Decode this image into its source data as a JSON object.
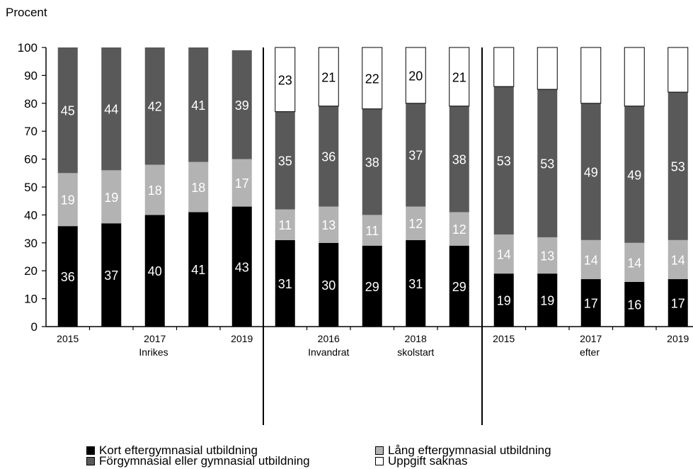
{
  "chart_data": {
    "type": "bar",
    "stacked": true,
    "ylabel": "Procent",
    "ylim": [
      0,
      100
    ],
    "yticks": [
      0,
      10,
      20,
      30,
      40,
      50,
      60,
      70,
      80,
      90,
      100
    ],
    "colors": {
      "kort": "#000000",
      "lang": "#b3b3b3",
      "forgym": "#595959",
      "saknas": "#ffffff",
      "label_on_dark": "#ffffff",
      "label_on_light": "#000000"
    },
    "series": [
      {
        "key": "kort",
        "name": "Kort eftergymnasial utbildning"
      },
      {
        "key": "lang",
        "name": "Lång eftergymnasial utbildning"
      },
      {
        "key": "forgym",
        "name": "Förgymnasial eller gymnasial utbildning"
      },
      {
        "key": "saknas",
        "name": "Uppgift saknas"
      }
    ],
    "groups": [
      {
        "label_lines": [
          "Inrikes"
        ],
        "categories": [
          "2015",
          "2016",
          "2017",
          "2018",
          "2019"
        ],
        "tick_labels": [
          "2015",
          "",
          "2017",
          "",
          "2019"
        ],
        "values": {
          "kort": [
            36,
            37,
            40,
            41,
            43
          ],
          "lang": [
            19,
            19,
            18,
            18,
            17
          ],
          "forgym": [
            45,
            44,
            42,
            41,
            39
          ],
          "saknas": [
            0,
            0,
            0,
            0,
            0
          ]
        },
        "data_labels": {
          "kort": [
            "36",
            "37",
            "40",
            "41",
            "43"
          ],
          "lang": [
            "19",
            "19",
            "18",
            "18",
            "17"
          ],
          "forgym": [
            "45",
            "44",
            "42",
            "41",
            "39"
          ],
          "saknas": [
            "",
            "",
            "",
            "",
            ""
          ]
        }
      },
      {
        "label_lines": [
          "Invandrat",
          "skolstart"
        ],
        "categories": [
          "2015",
          "2016",
          "2017",
          "2018",
          "2019"
        ],
        "tick_labels": [
          "",
          "2016",
          "",
          "2018",
          ""
        ],
        "values": {
          "kort": [
            31,
            30,
            29,
            31,
            29
          ],
          "lang": [
            11,
            13,
            11,
            12,
            12
          ],
          "forgym": [
            35,
            36,
            38,
            37,
            38
          ],
          "saknas": [
            23,
            21,
            22,
            20,
            21
          ]
        },
        "data_labels": {
          "kort": [
            "31",
            "30",
            "29",
            "31",
            "29"
          ],
          "lang": [
            "11",
            "13",
            "11",
            "12",
            "12"
          ],
          "forgym": [
            "35",
            "36",
            "38",
            "37",
            "38"
          ],
          "saknas": [
            "23",
            "21",
            "22",
            "20",
            "21"
          ]
        }
      },
      {
        "label_lines": [
          "efter"
        ],
        "categories": [
          "2015",
          "2016",
          "2017",
          "2018",
          "2019"
        ],
        "tick_labels": [
          "2015",
          "",
          "2017",
          "",
          "2019"
        ],
        "values": {
          "kort": [
            19,
            19,
            17,
            16,
            17
          ],
          "lang": [
            14,
            13,
            14,
            14,
            14
          ],
          "forgym": [
            53,
            53,
            49,
            49,
            53
          ],
          "saknas": [
            14,
            15,
            20,
            21,
            16
          ]
        },
        "data_labels": {
          "kort": [
            "19",
            "19",
            "17",
            "16",
            "17"
          ],
          "lang": [
            "14",
            "13",
            "14",
            "14",
            "14"
          ],
          "forgym": [
            "53",
            "53",
            "49",
            "49",
            "53"
          ],
          "saknas": [
            "",
            "",
            "",
            "",
            ""
          ]
        }
      }
    ],
    "legend_position": "bottom"
  }
}
